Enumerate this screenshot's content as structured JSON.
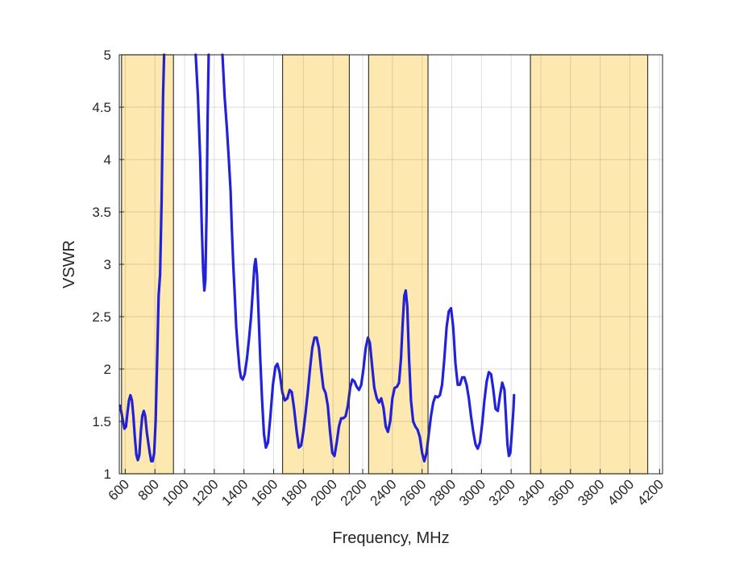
{
  "chart_data": {
    "type": "line",
    "title": "",
    "xlabel": "Frequency, MHz",
    "ylabel": "VSWR",
    "xlim": [
      560,
      4220
    ],
    "ylim": [
      1,
      5
    ],
    "grid": true,
    "x_ticks": [
      600,
      800,
      1000,
      1200,
      1400,
      1600,
      1800,
      2000,
      2200,
      2400,
      2600,
      2800,
      3000,
      3200,
      3400,
      3600,
      3800,
      4000,
      4200
    ],
    "x_tick_labels": [
      "600",
      "800",
      "1000",
      "1200",
      "1400",
      "1600",
      "1800",
      "2000",
      "2200",
      "2400",
      "2600",
      "2800",
      "3000",
      "3200",
      "3400",
      "3600",
      "3800",
      "4000",
      "4200"
    ],
    "y_ticks": [
      1,
      1.5,
      2,
      2.5,
      3,
      3.5,
      4,
      4.5,
      5
    ],
    "y_tick_labels": [
      "1",
      "1.5",
      "2",
      "2.5",
      "3",
      "3.5",
      "4",
      "4.5",
      "5"
    ],
    "bands": [
      {
        "from": 575,
        "to": 925
      },
      {
        "from": 1660,
        "to": 2110
      },
      {
        "from": 2240,
        "to": 2640
      },
      {
        "from": 3330,
        "to": 4120
      }
    ],
    "band_color": "#fde9b0",
    "line_color": "#0f0fd8",
    "series": [
      {
        "name": "",
        "points": [
          [
            565,
            1.65
          ],
          [
            575,
            1.58
          ],
          [
            585,
            1.5
          ],
          [
            595,
            1.43
          ],
          [
            605,
            1.45
          ],
          [
            615,
            1.58
          ],
          [
            625,
            1.7
          ],
          [
            635,
            1.75
          ],
          [
            645,
            1.7
          ],
          [
            655,
            1.55
          ],
          [
            665,
            1.35
          ],
          [
            675,
            1.18
          ],
          [
            685,
            1.13
          ],
          [
            695,
            1.18
          ],
          [
            705,
            1.4
          ],
          [
            715,
            1.55
          ],
          [
            725,
            1.6
          ],
          [
            735,
            1.55
          ],
          [
            745,
            1.4
          ],
          [
            755,
            1.3
          ],
          [
            765,
            1.2
          ],
          [
            775,
            1.12
          ],
          [
            785,
            1.12
          ],
          [
            795,
            1.2
          ],
          [
            805,
            1.5
          ],
          [
            815,
            2.1
          ],
          [
            825,
            2.7
          ],
          [
            835,
            2.9
          ],
          [
            845,
            3.6
          ],
          [
            855,
            4.6
          ],
          [
            862,
            5.0
          ],
          [
            1075,
            5.0
          ],
          [
            1090,
            4.6
          ],
          [
            1105,
            4.0
          ],
          [
            1115,
            3.4
          ],
          [
            1125,
            2.95
          ],
          [
            1133,
            2.75
          ],
          [
            1140,
            2.85
          ],
          [
            1148,
            3.5
          ],
          [
            1155,
            4.4
          ],
          [
            1162,
            5.0
          ],
          [
            1255,
            5.0
          ],
          [
            1270,
            4.6
          ],
          [
            1285,
            4.3
          ],
          [
            1298,
            4.0
          ],
          [
            1310,
            3.7
          ],
          [
            1318,
            3.35
          ],
          [
            1328,
            3.0
          ],
          [
            1338,
            2.7
          ],
          [
            1348,
            2.4
          ],
          [
            1358,
            2.2
          ],
          [
            1370,
            2.0
          ],
          [
            1380,
            1.92
          ],
          [
            1392,
            1.9
          ],
          [
            1405,
            1.95
          ],
          [
            1420,
            2.1
          ],
          [
            1435,
            2.3
          ],
          [
            1448,
            2.5
          ],
          [
            1460,
            2.75
          ],
          [
            1470,
            2.98
          ],
          [
            1478,
            3.05
          ],
          [
            1488,
            2.9
          ],
          [
            1498,
            2.55
          ],
          [
            1510,
            2.1
          ],
          [
            1522,
            1.7
          ],
          [
            1535,
            1.38
          ],
          [
            1548,
            1.25
          ],
          [
            1562,
            1.3
          ],
          [
            1578,
            1.55
          ],
          [
            1595,
            1.85
          ],
          [
            1612,
            2.02
          ],
          [
            1625,
            2.05
          ],
          [
            1640,
            1.97
          ],
          [
            1658,
            1.78
          ],
          [
            1675,
            1.7
          ],
          [
            1692,
            1.72
          ],
          [
            1708,
            1.8
          ],
          [
            1722,
            1.78
          ],
          [
            1738,
            1.62
          ],
          [
            1755,
            1.4
          ],
          [
            1770,
            1.25
          ],
          [
            1785,
            1.27
          ],
          [
            1800,
            1.4
          ],
          [
            1815,
            1.58
          ],
          [
            1830,
            1.78
          ],
          [
            1845,
            2.0
          ],
          [
            1860,
            2.2
          ],
          [
            1875,
            2.3
          ],
          [
            1890,
            2.3
          ],
          [
            1905,
            2.2
          ],
          [
            1920,
            2.0
          ],
          [
            1935,
            1.82
          ],
          [
            1950,
            1.77
          ],
          [
            1965,
            1.65
          ],
          [
            1980,
            1.4
          ],
          [
            1995,
            1.2
          ],
          [
            2010,
            1.17
          ],
          [
            2025,
            1.3
          ],
          [
            2040,
            1.45
          ],
          [
            2055,
            1.53
          ],
          [
            2070,
            1.53
          ],
          [
            2085,
            1.55
          ],
          [
            2100,
            1.65
          ],
          [
            2115,
            1.82
          ],
          [
            2130,
            1.9
          ],
          [
            2145,
            1.88
          ],
          [
            2160,
            1.83
          ],
          [
            2175,
            1.8
          ],
          [
            2190,
            1.85
          ],
          [
            2205,
            2.0
          ],
          [
            2220,
            2.2
          ],
          [
            2235,
            2.3
          ],
          [
            2248,
            2.25
          ],
          [
            2262,
            2.05
          ],
          [
            2278,
            1.82
          ],
          [
            2295,
            1.72
          ],
          [
            2310,
            1.68
          ],
          [
            2325,
            1.72
          ],
          [
            2340,
            1.63
          ],
          [
            2355,
            1.45
          ],
          [
            2370,
            1.4
          ],
          [
            2385,
            1.5
          ],
          [
            2400,
            1.72
          ],
          [
            2415,
            1.82
          ],
          [
            2430,
            1.83
          ],
          [
            2445,
            1.87
          ],
          [
            2458,
            2.1
          ],
          [
            2470,
            2.45
          ],
          [
            2480,
            2.7
          ],
          [
            2490,
            2.75
          ],
          [
            2500,
            2.6
          ],
          [
            2512,
            2.1
          ],
          [
            2525,
            1.7
          ],
          [
            2540,
            1.5
          ],
          [
            2555,
            1.45
          ],
          [
            2570,
            1.42
          ],
          [
            2585,
            1.35
          ],
          [
            2600,
            1.2
          ],
          [
            2615,
            1.12
          ],
          [
            2630,
            1.2
          ],
          [
            2645,
            1.38
          ],
          [
            2660,
            1.55
          ],
          [
            2675,
            1.68
          ],
          [
            2690,
            1.74
          ],
          [
            2705,
            1.73
          ],
          [
            2720,
            1.75
          ],
          [
            2735,
            1.85
          ],
          [
            2750,
            2.1
          ],
          [
            2765,
            2.4
          ],
          [
            2780,
            2.55
          ],
          [
            2795,
            2.58
          ],
          [
            2810,
            2.4
          ],
          [
            2825,
            2.05
          ],
          [
            2840,
            1.85
          ],
          [
            2855,
            1.85
          ],
          [
            2870,
            1.92
          ],
          [
            2885,
            1.92
          ],
          [
            2900,
            1.85
          ],
          [
            2915,
            1.72
          ],
          [
            2930,
            1.55
          ],
          [
            2945,
            1.4
          ],
          [
            2960,
            1.28
          ],
          [
            2975,
            1.24
          ],
          [
            2990,
            1.3
          ],
          [
            3005,
            1.48
          ],
          [
            3020,
            1.7
          ],
          [
            3035,
            1.88
          ],
          [
            3050,
            1.97
          ],
          [
            3065,
            1.95
          ],
          [
            3080,
            1.8
          ],
          [
            3095,
            1.62
          ],
          [
            3110,
            1.6
          ],
          [
            3125,
            1.75
          ],
          [
            3140,
            1.87
          ],
          [
            3155,
            1.8
          ],
          [
            3165,
            1.55
          ],
          [
            3175,
            1.28
          ],
          [
            3185,
            1.17
          ],
          [
            3195,
            1.2
          ],
          [
            3205,
            1.4
          ],
          [
            3215,
            1.6
          ],
          [
            3220,
            1.75
          ]
        ]
      }
    ]
  }
}
